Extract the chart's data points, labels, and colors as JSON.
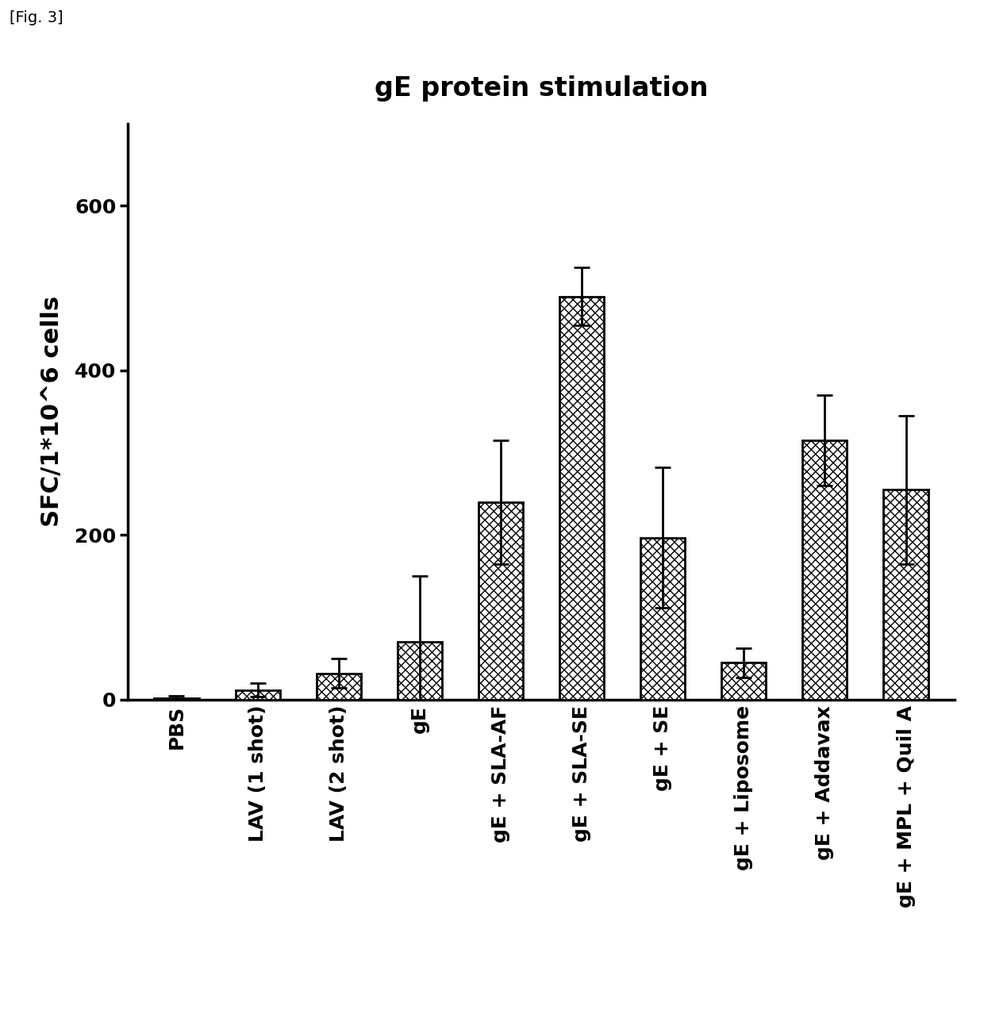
{
  "title": "gE protein stimulation",
  "ylabel": "SFC/1*10^6 cells",
  "categories": [
    "PBS",
    "LAV (1 shot)",
    "LAV (2 shot)",
    "gE",
    "gE + SLA-AF",
    "gE + SLA-SE",
    "gE + SE",
    "gE + Liposome",
    "gE + Addavax",
    "gE + MPL + Quil A"
  ],
  "values": [
    2,
    12,
    32,
    70,
    240,
    490,
    197,
    45,
    315,
    255
  ],
  "errors": [
    3,
    8,
    18,
    80,
    75,
    35,
    85,
    18,
    55,
    90
  ],
  "hatch_pattern": "xxx",
  "ylim": [
    0,
    700
  ],
  "yticks": [
    0,
    200,
    400,
    600
  ],
  "background_color": "#ffffff",
  "title_fontsize": 24,
  "ylabel_fontsize": 22,
  "tick_fontsize": 18,
  "label_fontsize": 18,
  "fig_label": "[Fig. 3]",
  "bar_width": 0.55
}
